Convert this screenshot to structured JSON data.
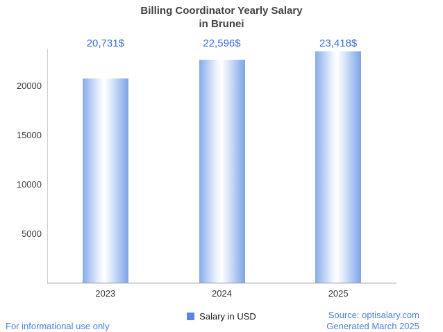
{
  "title": {
    "line1": "Billing Coordinator Yearly Salary",
    "line2": "in Brunei"
  },
  "chart_data": {
    "type": "bar",
    "title": "Billing Coordinator Yearly Salary in Brunei",
    "categories": [
      "2023",
      "2024",
      "2025"
    ],
    "series": [
      {
        "name": "Salary in USD",
        "values": [
          20731,
          22596,
          23418
        ]
      }
    ],
    "value_labels": [
      "20,731$",
      "22,596$",
      "23,418$"
    ],
    "xlabel": "",
    "ylabel": "",
    "yticks": [
      5000,
      10000,
      15000,
      20000
    ],
    "ylim": [
      0,
      24000
    ],
    "grid": false,
    "legend_position": "bottom"
  },
  "legend": {
    "label": "Salary in USD",
    "marker_color": "#5b87dd"
  },
  "footer": {
    "left": "For informational use only",
    "source": "Source: optisalary.com",
    "generated": "Generated March 2025"
  },
  "colors": {
    "value_label_text": "#3b6cd1",
    "footer_text": "#4b7fdd",
    "bar_edge": "#7da3e7",
    "bar_mid": "#ffffff",
    "axis_line": "#8f8f8f"
  }
}
